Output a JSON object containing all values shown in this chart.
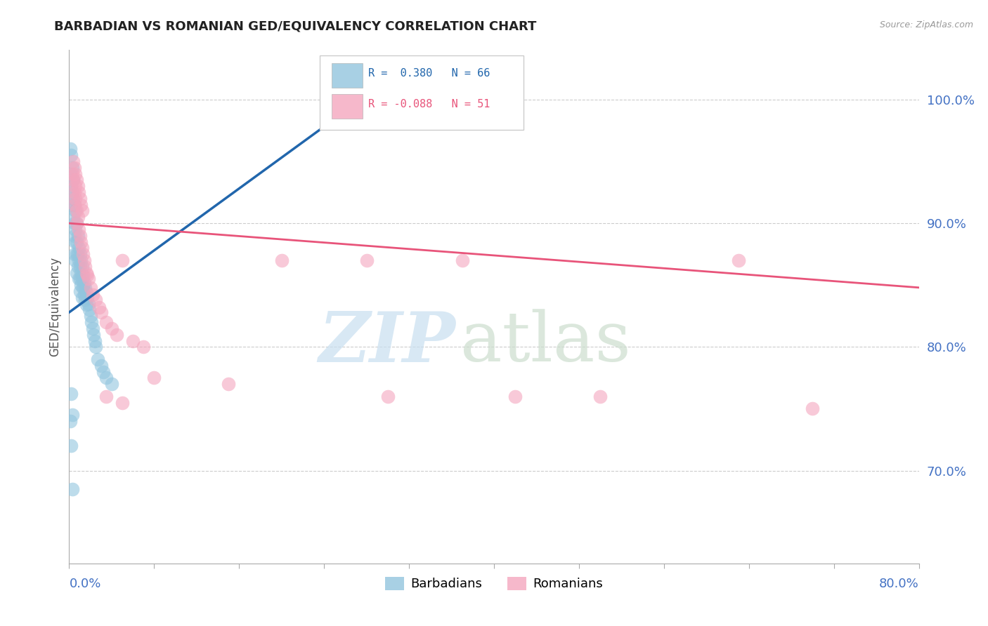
{
  "title": "BARBADIAN VS ROMANIAN GED/EQUIVALENCY CORRELATION CHART",
  "source_text": "Source: ZipAtlas.com",
  "ylabel": "GED/Equivalency",
  "y_tick_labels": [
    "70.0%",
    "80.0%",
    "90.0%",
    "100.0%"
  ],
  "y_tick_values": [
    0.7,
    0.8,
    0.9,
    1.0
  ],
  "x_lim": [
    0.0,
    0.8
  ],
  "y_lim": [
    0.625,
    1.04
  ],
  "legend_blue_label": "R =  0.380   N = 66",
  "legend_pink_label": "R = -0.088   N = 51",
  "blue_color": "#92c5de",
  "pink_color": "#f4a6be",
  "blue_line_color": "#2166ac",
  "pink_line_color": "#e8547a",
  "blue_scatter_x": [
    0.001,
    0.001,
    0.002,
    0.002,
    0.003,
    0.003,
    0.003,
    0.004,
    0.004,
    0.004,
    0.005,
    0.005,
    0.005,
    0.005,
    0.006,
    0.006,
    0.006,
    0.006,
    0.007,
    0.007,
    0.007,
    0.007,
    0.008,
    0.008,
    0.008,
    0.009,
    0.009,
    0.009,
    0.01,
    0.01,
    0.01,
    0.01,
    0.011,
    0.011,
    0.011,
    0.012,
    0.012,
    0.012,
    0.013,
    0.013,
    0.014,
    0.014,
    0.015,
    0.015,
    0.016,
    0.016,
    0.017,
    0.018,
    0.019,
    0.02,
    0.021,
    0.022,
    0.023,
    0.024,
    0.025,
    0.027,
    0.03,
    0.032,
    0.035,
    0.04,
    0.001,
    0.002,
    0.003,
    0.275,
    0.002,
    0.003
  ],
  "blue_scatter_y": [
    0.96,
    0.94,
    0.955,
    0.93,
    0.945,
    0.925,
    0.915,
    0.935,
    0.92,
    0.905,
    0.915,
    0.9,
    0.89,
    0.875,
    0.91,
    0.895,
    0.885,
    0.87,
    0.9,
    0.885,
    0.875,
    0.86,
    0.89,
    0.875,
    0.865,
    0.88,
    0.87,
    0.855,
    0.875,
    0.865,
    0.855,
    0.845,
    0.87,
    0.86,
    0.85,
    0.865,
    0.855,
    0.84,
    0.858,
    0.848,
    0.852,
    0.842,
    0.848,
    0.838,
    0.844,
    0.834,
    0.84,
    0.835,
    0.83,
    0.825,
    0.82,
    0.815,
    0.81,
    0.805,
    0.8,
    0.79,
    0.785,
    0.78,
    0.775,
    0.77,
    0.74,
    0.72,
    0.685,
    1.0,
    0.762,
    0.745
  ],
  "pink_scatter_x": [
    0.003,
    0.004,
    0.005,
    0.005,
    0.006,
    0.006,
    0.007,
    0.007,
    0.008,
    0.009,
    0.01,
    0.011,
    0.012,
    0.013,
    0.014,
    0.015,
    0.016,
    0.017,
    0.018,
    0.02,
    0.022,
    0.025,
    0.028,
    0.03,
    0.035,
    0.04,
    0.045,
    0.05,
    0.06,
    0.07,
    0.004,
    0.005,
    0.006,
    0.007,
    0.008,
    0.009,
    0.01,
    0.011,
    0.012,
    0.2,
    0.035,
    0.05,
    0.28,
    0.37,
    0.63,
    0.7,
    0.5,
    0.42,
    0.3,
    0.15,
    0.08
  ],
  "pink_scatter_y": [
    0.94,
    0.935,
    0.925,
    0.915,
    0.92,
    0.93,
    0.91,
    0.9,
    0.905,
    0.895,
    0.89,
    0.885,
    0.88,
    0.875,
    0.87,
    0.865,
    0.86,
    0.858,
    0.855,
    0.848,
    0.842,
    0.838,
    0.832,
    0.828,
    0.82,
    0.815,
    0.81,
    0.87,
    0.805,
    0.8,
    0.95,
    0.945,
    0.94,
    0.935,
    0.93,
    0.925,
    0.92,
    0.915,
    0.91,
    0.87,
    0.76,
    0.755,
    0.87,
    0.87,
    0.87,
    0.75,
    0.76,
    0.76,
    0.76,
    0.77,
    0.775
  ],
  "blue_trendline_x": [
    0.0,
    0.275
  ],
  "blue_trendline_y": [
    0.828,
    1.0
  ],
  "pink_trendline_x": [
    0.0,
    0.8
  ],
  "pink_trendline_y": [
    0.9,
    0.848
  ]
}
